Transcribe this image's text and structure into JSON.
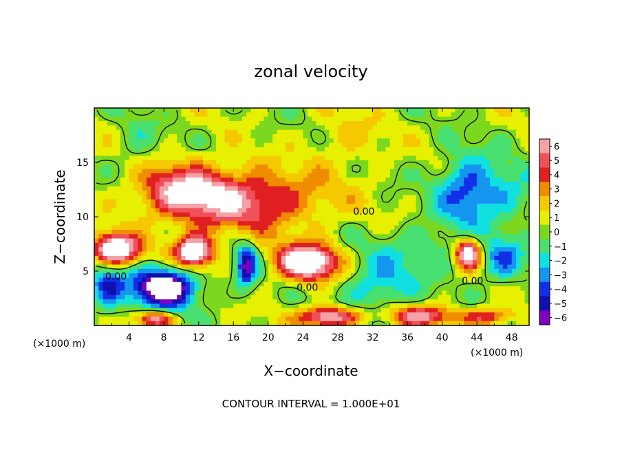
{
  "chart_data": {
    "type": "heatmap",
    "title": "zonal velocity",
    "xlabel": "X−coordinate",
    "ylabel": "Z−coordinate",
    "x_unit": "(×1000 m)",
    "y_unit": "(×1000 m)",
    "xlim": [
      0,
      50
    ],
    "ylim": [
      0,
      20
    ],
    "x_ticks": [
      4,
      8,
      12,
      16,
      20,
      24,
      28,
      32,
      36,
      40,
      44,
      48
    ],
    "y_ticks": [
      5,
      10,
      15
    ],
    "color_scale": {
      "levels": [
        "6",
        "5",
        "4",
        "3",
        "2",
        "1",
        "0",
        "−1",
        "−2",
        "−3",
        "−4",
        "−5",
        "−6"
      ],
      "values": [
        6,
        5,
        4,
        3,
        2,
        1,
        0,
        -1,
        -2,
        -3,
        -4,
        -5,
        -6
      ],
      "colors": [
        "#f4a2a8",
        "#f0505a",
        "#e02020",
        "#f08c00",
        "#f6c800",
        "#e6f000",
        "#7cd81e",
        "#48e070",
        "#10e0e0",
        "#1496f0",
        "#1030e8",
        "#1010b0",
        "#8000c0"
      ],
      "above_max_color": "#ffffff",
      "below_min_color": "#ffffff"
    },
    "features": [
      {
        "x": 17,
        "z": 11.5,
        "value": 5.2,
        "rx": 9,
        "rz": 2.8
      },
      {
        "x": 10,
        "z": 12.5,
        "value": 4.2,
        "rx": 5,
        "rz": 2.4
      },
      {
        "x": 29,
        "z": 17,
        "value": 1.4,
        "rx": 4,
        "rz": 2.6
      },
      {
        "x": 43,
        "z": 12.5,
        "value": -4.6,
        "rx": 3.5,
        "rz": 3.0
      },
      {
        "x": 48,
        "z": 12,
        "value": -2.0,
        "rx": 3,
        "rz": 2.5
      },
      {
        "x": 2.5,
        "z": 7,
        "value": 9,
        "rx": 2.6,
        "rz": 1.4
      },
      {
        "x": 11.5,
        "z": 6.8,
        "value": 9,
        "rx": 2.2,
        "rz": 1.4
      },
      {
        "x": 24.5,
        "z": 5.8,
        "value": 9,
        "rx": 3.4,
        "rz": 1.6
      },
      {
        "x": 43,
        "z": 6.6,
        "value": 8,
        "rx": 1.5,
        "rz": 1.4
      },
      {
        "x": 8,
        "z": 3.5,
        "value": -9,
        "rx": 3.6,
        "rz": 1.8
      },
      {
        "x": 17.5,
        "z": 5.5,
        "value": -6,
        "rx": 1.2,
        "rz": 2.0
      },
      {
        "x": 1.5,
        "z": 3.5,
        "value": -4.2,
        "rx": 2.0,
        "rz": 2.2
      },
      {
        "x": 47,
        "z": 6,
        "value": -3.5,
        "rx": 2.5,
        "rz": 2.0
      },
      {
        "x": 27,
        "z": 0.8,
        "value": 7,
        "rx": 3.5,
        "rz": 0.9
      },
      {
        "x": 37.5,
        "z": 0.9,
        "value": 5.5,
        "rx": 3.5,
        "rz": 0.9
      },
      {
        "x": 45,
        "z": 0.8,
        "value": 4.5,
        "rx": 3.2,
        "rz": 0.8
      },
      {
        "x": 7,
        "z": 0.6,
        "value": 6,
        "rx": 2,
        "rz": 0.7
      },
      {
        "x": 32.5,
        "z": 3.5,
        "value": -2.8,
        "rx": 4,
        "rz": 2.5
      },
      {
        "x": 38,
        "z": 7,
        "value": -1.8,
        "rx": 6,
        "rz": 2.5
      },
      {
        "x": 5,
        "z": 16.5,
        "value": -1.2,
        "rx": 2.5,
        "rz": 3
      }
    ],
    "contour_labels": [
      {
        "text": "0.00",
        "x": 2.5,
        "z": 4.2
      },
      {
        "text": "0.00",
        "x": 24.5,
        "z": 3.2
      },
      {
        "text": "0.00",
        "x": 31,
        "z": 10.2
      },
      {
        "text": "0.00",
        "x": 43.5,
        "z": 3.8
      }
    ],
    "footnote": "CONTOUR INTERVAL = 1.000E+01"
  }
}
